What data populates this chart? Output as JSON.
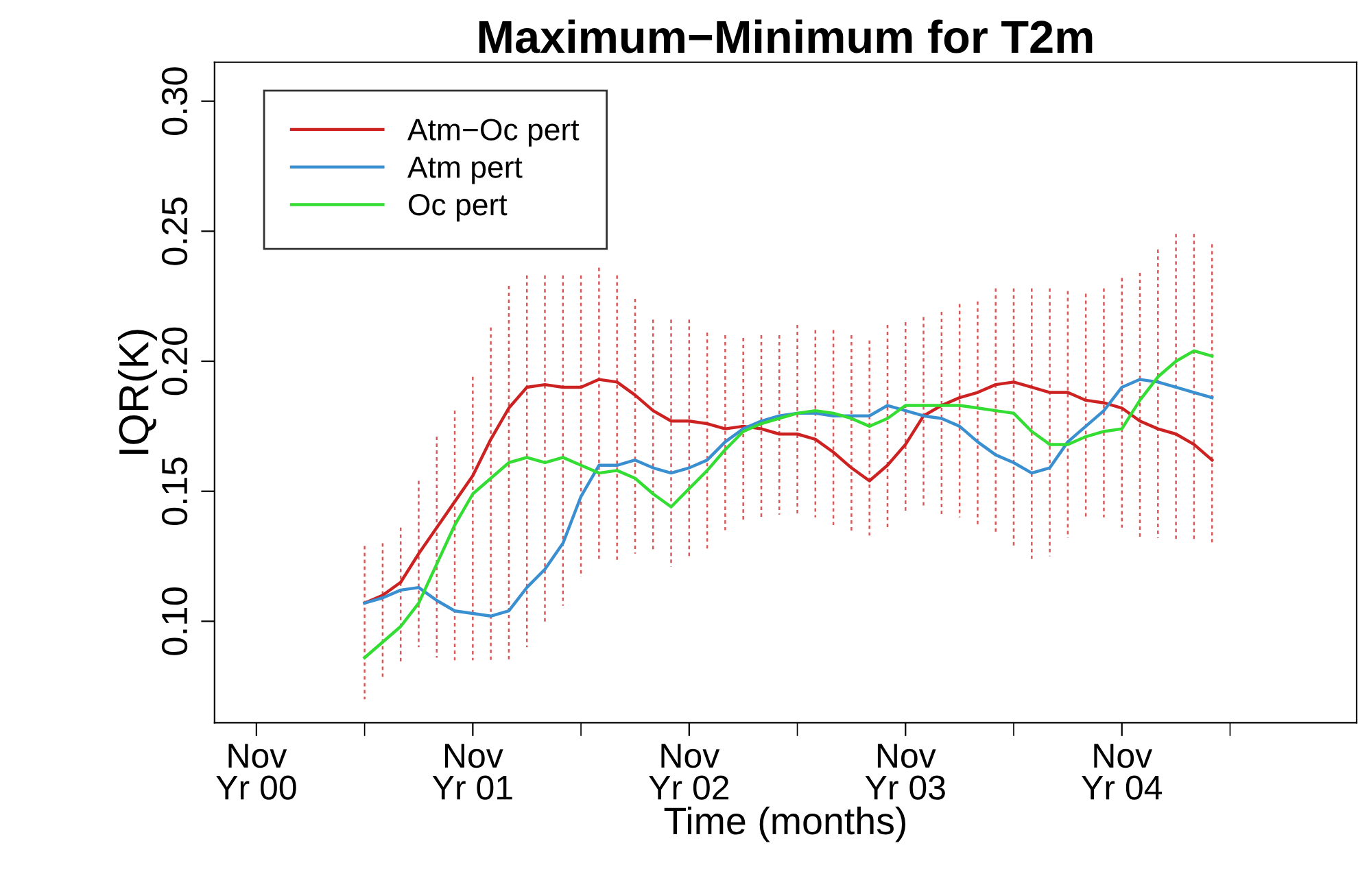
{
  "chart_data": {
    "type": "line",
    "title": "Maximum−Minimum for T2m",
    "xlabel": "Time (months)",
    "ylabel": "IQR(K)",
    "categories": [
      "Nov\nYr 00",
      null,
      null,
      null,
      null,
      null,
      null,
      null,
      null,
      null,
      null,
      null,
      "Nov\nYr 01",
      null,
      null,
      null,
      null,
      null,
      null,
      null,
      null,
      null,
      null,
      null,
      "Nov\nYr 02",
      null,
      null,
      null,
      null,
      null,
      null,
      null,
      null,
      null,
      null,
      null,
      "Nov\nYr 03",
      null,
      null,
      null,
      null,
      null,
      null,
      null,
      null,
      null,
      null,
      null,
      "Nov\nYr 04",
      null,
      null,
      null,
      null,
      null,
      null
    ],
    "series": [
      {
        "name": "Atm−Oc pert",
        "color": "#cc2222",
        "values": [
          null,
          null,
          null,
          null,
          null,
          null,
          0.107,
          0.11,
          0.115,
          0.126,
          0.136,
          0.146,
          0.156,
          0.17,
          0.182,
          0.19,
          0.191,
          0.19,
          0.19,
          0.193,
          0.192,
          0.187,
          0.181,
          0.177,
          0.177,
          0.176,
          0.174,
          0.175,
          0.174,
          0.172,
          0.172,
          0.17,
          0.165,
          0.159,
          0.154,
          0.16,
          0.168,
          0.179,
          0.183,
          0.186,
          0.188,
          0.191,
          0.192,
          0.19,
          0.188,
          0.188,
          0.185,
          0.184,
          0.182,
          0.177,
          0.174,
          0.172,
          0.168,
          0.162,
          null
        ],
        "errors": [
          null,
          null,
          null,
          null,
          null,
          null,
          [
            0.07,
            0.129
          ],
          [
            0.078,
            0.13
          ],
          [
            0.084,
            0.136
          ],
          [
            0.09,
            0.154
          ],
          [
            0.086,
            0.171
          ],
          [
            0.085,
            0.181
          ],
          [
            0.085,
            0.194
          ],
          [
            0.084,
            0.213
          ],
          [
            0.085,
            0.229
          ],
          [
            0.09,
            0.233
          ],
          [
            0.099,
            0.233
          ],
          [
            0.106,
            0.233
          ],
          [
            0.117,
            0.233
          ],
          [
            0.124,
            0.236
          ],
          [
            0.123,
            0.233
          ],
          [
            0.126,
            0.224
          ],
          [
            0.127,
            0.216
          ],
          [
            0.121,
            0.216
          ],
          [
            0.124,
            0.216
          ],
          [
            0.128,
            0.211
          ],
          [
            0.135,
            0.21
          ],
          [
            0.139,
            0.209
          ],
          [
            0.14,
            0.21
          ],
          [
            0.141,
            0.21
          ],
          [
            0.141,
            0.214
          ],
          [
            0.14,
            0.212
          ],
          [
            0.137,
            0.212
          ],
          [
            0.134,
            0.21
          ],
          [
            0.133,
            0.208
          ],
          [
            0.135,
            0.214
          ],
          [
            0.142,
            0.215
          ],
          [
            0.144,
            0.217
          ],
          [
            0.141,
            0.219
          ],
          [
            0.14,
            0.222
          ],
          [
            0.137,
            0.223
          ],
          [
            0.134,
            0.228
          ],
          [
            0.129,
            0.228
          ],
          [
            0.124,
            0.228
          ],
          [
            0.125,
            0.228
          ],
          [
            0.132,
            0.227
          ],
          [
            0.14,
            0.226
          ],
          [
            0.14,
            0.228
          ],
          [
            0.136,
            0.232
          ],
          [
            0.132,
            0.234
          ],
          [
            0.132,
            0.243
          ],
          [
            0.131,
            0.249
          ],
          [
            0.131,
            0.249
          ],
          [
            0.13,
            0.245
          ],
          null
        ]
      },
      {
        "name": "Atm pert",
        "color": "#3a8fd0",
        "values": [
          null,
          null,
          null,
          null,
          null,
          null,
          0.107,
          0.109,
          0.112,
          0.113,
          0.108,
          0.104,
          0.103,
          0.102,
          0.104,
          0.113,
          0.12,
          0.13,
          0.148,
          0.16,
          0.16,
          0.162,
          0.159,
          0.157,
          0.159,
          0.162,
          0.169,
          0.174,
          0.177,
          0.179,
          0.18,
          0.18,
          0.179,
          0.179,
          0.179,
          0.183,
          0.181,
          0.179,
          0.178,
          0.175,
          0.169,
          0.164,
          0.161,
          0.157,
          0.159,
          0.169,
          0.175,
          0.181,
          0.19,
          0.193,
          0.192,
          0.19,
          0.188,
          0.186,
          null
        ]
      },
      {
        "name": "Oc pert",
        "color": "#33dd33",
        "values": [
          null,
          null,
          null,
          null,
          null,
          null,
          0.086,
          0.092,
          0.098,
          0.107,
          0.122,
          0.137,
          0.149,
          0.155,
          0.161,
          0.163,
          0.161,
          0.163,
          0.16,
          0.157,
          0.158,
          0.155,
          0.149,
          0.144,
          0.151,
          0.158,
          0.166,
          0.173,
          0.176,
          0.178,
          0.18,
          0.181,
          0.18,
          0.178,
          0.175,
          0.178,
          0.183,
          0.183,
          0.183,
          0.183,
          0.182,
          0.181,
          0.18,
          0.173,
          0.168,
          0.168,
          0.171,
          0.173,
          0.174,
          0.185,
          0.194,
          0.2,
          0.204,
          0.202,
          null
        ]
      }
    ],
    "ylim": [
      0.061,
      0.315
    ],
    "yticks": [
      {
        "value": 0.1,
        "label": "0.10"
      },
      {
        "value": 0.15,
        "label": "0.15"
      },
      {
        "value": 0.2,
        "label": "0.20"
      },
      {
        "value": 0.25,
        "label": "0.25"
      },
      {
        "value": 0.3,
        "label": "0.30"
      }
    ],
    "grid": false,
    "legend": "top left",
    "line_style": "solid",
    "marker": "none"
  }
}
